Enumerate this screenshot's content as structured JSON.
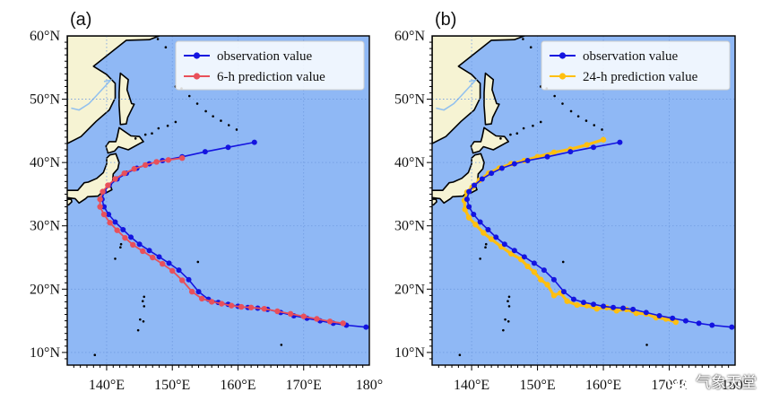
{
  "panels": [
    {
      "label": "(a)",
      "legend": [
        "observation value",
        "6-h prediction value"
      ],
      "series_colors": [
        "#1414e0",
        "#e8505a"
      ]
    },
    {
      "label": "(b)",
      "legend": [
        "observation value",
        "24-h prediction value"
      ],
      "series_colors": [
        "#1414e0",
        "#ffbf10"
      ]
    }
  ],
  "colors": {
    "ocean": "#8fb8f5",
    "land": "#f6f3d3",
    "coast": "#000000",
    "river": "#93c1ee",
    "grid": "#6f9ae0"
  },
  "watermark": "气象天堂",
  "watermark_icon": "wechat-icon",
  "chart_data": {
    "type": "line",
    "xlim": [
      134,
      180
    ],
    "ylim": [
      8,
      60
    ],
    "x_ticks": [
      140,
      150,
      160,
      170,
      180
    ],
    "x_tick_labels": [
      "140°E",
      "150°E",
      "160°E",
      "170°E",
      "180°"
    ],
    "y_ticks": [
      10,
      20,
      30,
      40,
      50,
      60
    ],
    "y_tick_labels": [
      "10°N",
      "20°N",
      "30°N",
      "40°N",
      "50°N",
      "60°N"
    ],
    "observation": {
      "lon": [
        179.5,
        176.5,
        174.5,
        172.5,
        170.5,
        168.5,
        166.5,
        164.5,
        163,
        161.5,
        160,
        158.5,
        157,
        155.5,
        154,
        152.5,
        151,
        149.5,
        148,
        146.5,
        145,
        143.7,
        142.5,
        141.3,
        140.3,
        139.6,
        139.3,
        139.6,
        140.4,
        141.6,
        143,
        144.6,
        146.5,
        148.5,
        151.5,
        155,
        158.5,
        162.5
      ],
      "lat": [
        14,
        14.3,
        14.6,
        15,
        15.4,
        15.8,
        16.3,
        16.8,
        17,
        17.1,
        17.3,
        17.6,
        17.9,
        18.4,
        19.6,
        21.5,
        23,
        24.1,
        25.1,
        26.1,
        27.1,
        28.2,
        29.4,
        30.6,
        31.8,
        33,
        34.2,
        35.4,
        36.4,
        37.4,
        38.3,
        39.1,
        39.8,
        40.3,
        40.9,
        41.7,
        42.4,
        43.2
      ]
    },
    "prediction_6h": {
      "lon": [
        176,
        174,
        172,
        170,
        168,
        166,
        164,
        162,
        160.5,
        159,
        157.5,
        156,
        154.5,
        153,
        151.5,
        150,
        148.5,
        147,
        145.5,
        144,
        142.8,
        141.6,
        140.5,
        139.6,
        139,
        139,
        139.4,
        140.2,
        141.3,
        142.7,
        144.2,
        145.9,
        147.6,
        149.4,
        151.5
      ],
      "lat": [
        14.6,
        14.9,
        15.3,
        15.7,
        16.1,
        16.5,
        16.9,
        17.1,
        17.2,
        17.4,
        17.7,
        18,
        18.5,
        19.6,
        21.4,
        22.9,
        24,
        25,
        26,
        27,
        28.1,
        29.3,
        30.5,
        31.8,
        33,
        34.2,
        35.4,
        36.4,
        37.4,
        38.3,
        39,
        39.6,
        40.1,
        40.4,
        40.7
      ]
    },
    "prediction_24h": {
      "lon": [
        171,
        169.5,
        168,
        166.5,
        165,
        163.5,
        162,
        160.5,
        159,
        157.5,
        156,
        154.5,
        153.5,
        152.5,
        151.5,
        150.5,
        149.5,
        148.5,
        147.5,
        146,
        144.5,
        143,
        141.8,
        140.6,
        139.6,
        139,
        138.9,
        139.3,
        140.1,
        141.2,
        142.6,
        144.2,
        146,
        148,
        150,
        152.5,
        155,
        157.5,
        160
      ],
      "lat": [
        14.8,
        15.3,
        15.5,
        16.1,
        16.2,
        16.8,
        16.6,
        17.1,
        16.9,
        17.4,
        17.5,
        18.1,
        19.4,
        19,
        20.7,
        21.5,
        22.7,
        23.6,
        24.7,
        25.6,
        26.7,
        27.9,
        28.9,
        30.2,
        31.3,
        32.6,
        34,
        35.3,
        36.1,
        37.2,
        38.3,
        39.1,
        39.8,
        40.3,
        40.9,
        41.6,
        42.1,
        42.8,
        43.6
      ]
    }
  }
}
